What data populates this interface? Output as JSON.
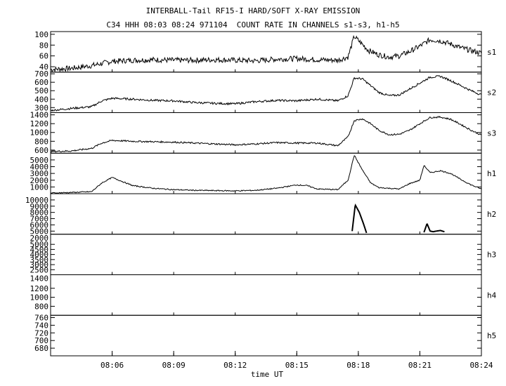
{
  "header": {
    "title": "INTERBALL-Tail RF15-I HARD/SOFT X-RAY EMISSION",
    "subtitle": "C34 HHH 08:03 08:24 971104  COUNT RATE IN CHANNELS s1-s3, h1-h5"
  },
  "chart_data": {
    "type": "line",
    "x_axis": {
      "label": "time UT",
      "range_minutes": [
        483,
        504
      ],
      "ticks": [
        "08:06",
        "08:09",
        "08:12",
        "08:15",
        "08:18",
        "08:21",
        "08:24"
      ],
      "tick_values": [
        486,
        489,
        492,
        495,
        498,
        501,
        504
      ]
    },
    "grid": false,
    "panels": [
      {
        "name": "s1",
        "ylim": [
          30,
          105
        ],
        "ytick_labels": [
          "40",
          "60",
          "80",
          "100"
        ],
        "ytick_values": [
          40,
          60,
          80,
          100
        ],
        "bottom_label": "",
        "series": [
          [
            483.0,
            35
          ],
          [
            484.0,
            37
          ],
          [
            485.0,
            42
          ],
          [
            486.0,
            50
          ],
          [
            487.0,
            52
          ],
          [
            488.0,
            53
          ],
          [
            489.0,
            52
          ],
          [
            490.0,
            52
          ],
          [
            491.0,
            53
          ],
          [
            492.0,
            52
          ],
          [
            493.0,
            51
          ],
          [
            494.0,
            54
          ],
          [
            495.0,
            55
          ],
          [
            496.0,
            53
          ],
          [
            497.0,
            52
          ],
          [
            497.5,
            58
          ],
          [
            497.8,
            96
          ],
          [
            498.1,
            85
          ],
          [
            498.5,
            70
          ],
          [
            499.0,
            62
          ],
          [
            499.5,
            58
          ],
          [
            500.0,
            60
          ],
          [
            500.5,
            68
          ],
          [
            501.0,
            78
          ],
          [
            501.5,
            90
          ],
          [
            502.0,
            88
          ],
          [
            502.5,
            82
          ],
          [
            503.0,
            75
          ],
          [
            503.5,
            70
          ],
          [
            504.0,
            65
          ]
        ],
        "noise": 5
      },
      {
        "name": "s2",
        "ylim": [
          240,
          720
        ],
        "ytick_labels": [
          "300",
          "400",
          "500",
          "600",
          "700"
        ],
        "ytick_values": [
          300,
          400,
          500,
          600,
          700
        ],
        "bottom_label": "",
        "series": [
          [
            483.0,
            265
          ],
          [
            484.0,
            290
          ],
          [
            485.0,
            310
          ],
          [
            485.5,
            380
          ],
          [
            486.0,
            410
          ],
          [
            487.0,
            400
          ],
          [
            488.0,
            385
          ],
          [
            489.0,
            380
          ],
          [
            490.0,
            360
          ],
          [
            491.0,
            350
          ],
          [
            492.0,
            345
          ],
          [
            493.0,
            370
          ],
          [
            494.0,
            385
          ],
          [
            495.0,
            380
          ],
          [
            496.0,
            400
          ],
          [
            497.0,
            380
          ],
          [
            497.5,
            440
          ],
          [
            497.8,
            650
          ],
          [
            498.2,
            640
          ],
          [
            498.6,
            560
          ],
          [
            499.0,
            480
          ],
          [
            499.5,
            440
          ],
          [
            500.0,
            450
          ],
          [
            500.5,
            520
          ],
          [
            501.0,
            590
          ],
          [
            501.5,
            660
          ],
          [
            502.0,
            670
          ],
          [
            502.5,
            620
          ],
          [
            503.0,
            560
          ],
          [
            503.5,
            500
          ],
          [
            504.0,
            450
          ]
        ],
        "noise": 12
      },
      {
        "name": "s3",
        "ylim": [
          530,
          1450
        ],
        "ytick_labels": [
          "600",
          "800",
          "1000",
          "1200",
          "1400"
        ],
        "ytick_values": [
          600,
          800,
          1000,
          1200,
          1400
        ],
        "bottom_label": "",
        "series": [
          [
            483.0,
            570
          ],
          [
            484.0,
            580
          ],
          [
            485.0,
            640
          ],
          [
            485.5,
            760
          ],
          [
            486.0,
            820
          ],
          [
            487.0,
            800
          ],
          [
            488.0,
            790
          ],
          [
            489.0,
            780
          ],
          [
            490.0,
            760
          ],
          [
            491.0,
            740
          ],
          [
            492.0,
            720
          ],
          [
            493.0,
            740
          ],
          [
            494.0,
            770
          ],
          [
            495.0,
            760
          ],
          [
            496.0,
            760
          ],
          [
            497.0,
            700
          ],
          [
            497.5,
            900
          ],
          [
            497.8,
            1270
          ],
          [
            498.2,
            1310
          ],
          [
            498.6,
            1200
          ],
          [
            499.0,
            1050
          ],
          [
            499.5,
            950
          ],
          [
            500.0,
            960
          ],
          [
            500.5,
            1050
          ],
          [
            501.0,
            1200
          ],
          [
            501.5,
            1340
          ],
          [
            502.0,
            1350
          ],
          [
            502.5,
            1300
          ],
          [
            503.0,
            1180
          ],
          [
            503.5,
            1050
          ],
          [
            504.0,
            940
          ]
        ],
        "noise": 18
      },
      {
        "name": "h1",
        "ylim": [
          0,
          6000
        ],
        "ytick_labels": [
          "1000",
          "2000",
          "3000",
          "4000",
          "5000"
        ],
        "ytick_values": [
          1000,
          2000,
          3000,
          4000,
          5000
        ],
        "bottom_label": "",
        "series": [
          [
            483.0,
            100
          ],
          [
            484.0,
            180
          ],
          [
            485.0,
            300
          ],
          [
            485.5,
            1600
          ],
          [
            486.0,
            2400
          ],
          [
            486.5,
            1800
          ],
          [
            487.0,
            1200
          ],
          [
            488.0,
            800
          ],
          [
            489.0,
            600
          ],
          [
            490.0,
            500
          ],
          [
            491.0,
            460
          ],
          [
            492.0,
            420
          ],
          [
            493.0,
            500
          ],
          [
            494.0,
            800
          ],
          [
            495.0,
            1300
          ],
          [
            495.5,
            1200
          ],
          [
            496.0,
            700
          ],
          [
            497.0,
            600
          ],
          [
            497.5,
            2000
          ],
          [
            497.8,
            5700
          ],
          [
            498.2,
            3500
          ],
          [
            498.6,
            1600
          ],
          [
            499.0,
            900
          ],
          [
            499.5,
            800
          ],
          [
            500.0,
            700
          ],
          [
            500.5,
            1500
          ],
          [
            501.0,
            2000
          ],
          [
            501.2,
            4200
          ],
          [
            501.5,
            3100
          ],
          [
            502.0,
            3400
          ],
          [
            502.5,
            3000
          ],
          [
            503.0,
            2100
          ],
          [
            503.5,
            1300
          ],
          [
            504.0,
            700
          ]
        ],
        "noise": 80
      },
      {
        "name": "h2",
        "ylim": [
          4500,
          11000
        ],
        "ytick_labels": [
          "5000",
          "6000",
          "7000",
          "8000",
          "9000",
          "10000"
        ],
        "ytick_values": [
          5000,
          6000,
          7000,
          8000,
          9000,
          10000
        ],
        "bottom_label": "2000",
        "series": [
          [
            497.7,
            5000
          ],
          [
            497.85,
            9200
          ],
          [
            498.05,
            8000
          ],
          [
            498.25,
            6200
          ],
          [
            498.4,
            4700
          ]
        ],
        "series2": [
          [
            501.2,
            4800
          ],
          [
            501.35,
            6200
          ],
          [
            501.5,
            5000
          ],
          [
            501.65,
            4900
          ],
          [
            501.8,
            5000
          ],
          [
            502.0,
            5100
          ],
          [
            502.2,
            4900
          ]
        ],
        "noise": 0
      },
      {
        "name": "h3",
        "ylim": [
          2000,
          6000
        ],
        "ytick_labels": [
          "2500",
          "3000",
          "3500",
          "4000",
          "4500",
          "5000"
        ],
        "ytick_values": [
          2500,
          3000,
          3500,
          4000,
          4500,
          5000
        ],
        "bottom_label": "1400",
        "series": [],
        "noise": 0
      },
      {
        "name": "h4",
        "ylim": [
          600,
          1500
        ],
        "ytick_labels": [
          "800",
          "1000",
          "1200"
        ],
        "ytick_values": [
          800,
          1000,
          1200
        ],
        "bottom_label": "",
        "series": [],
        "noise": 0
      },
      {
        "name": "h5",
        "ylim": [
          660,
          766
        ],
        "ytick_labels": [
          "760",
          "740",
          "720",
          "700",
          "680"
        ],
        "ytick_values": [
          760,
          740,
          720,
          700,
          680
        ],
        "bottom_label": "",
        "series": [],
        "noise": 0
      }
    ]
  }
}
